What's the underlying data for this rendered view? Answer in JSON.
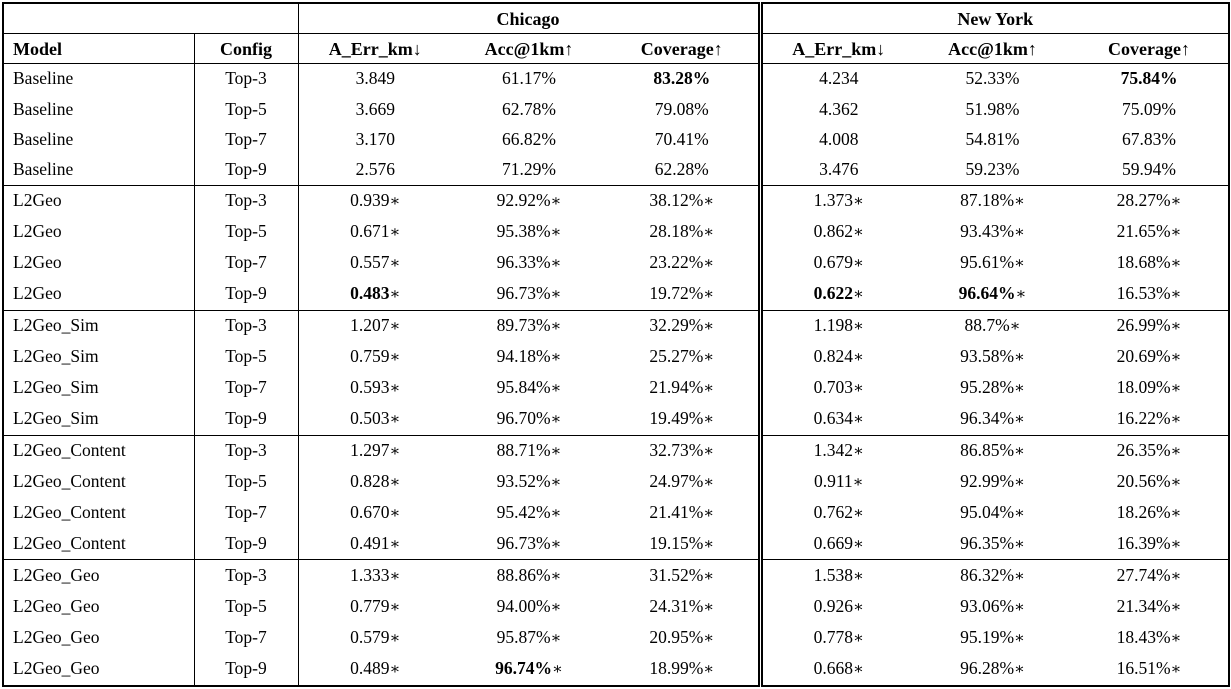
{
  "table": {
    "star_symbol": "∗",
    "city_groups": [
      "Chicago",
      "New York"
    ],
    "column_headers": {
      "model": "Model",
      "config": "Config",
      "metrics": [
        "A_Err_km↓",
        "Acc@1km↑",
        "Coverage↑"
      ]
    },
    "chart_data": {
      "type": "table",
      "note": "Results table; per-row values listed in groups below"
    },
    "groups": [
      {
        "model": "Baseline",
        "rows": [
          {
            "config": "Top-3",
            "starred": false,
            "chicago": [
              "3.849",
              "61.17%",
              "83.28%"
            ],
            "chicago_bold": [
              false,
              false,
              true
            ],
            "new_york": [
              "4.234",
              "52.33%",
              "75.84%"
            ],
            "new_york_bold": [
              false,
              false,
              true
            ]
          },
          {
            "config": "Top-5",
            "starred": false,
            "chicago": [
              "3.669",
              "62.78%",
              "79.08%"
            ],
            "chicago_bold": [
              false,
              false,
              false
            ],
            "new_york": [
              "4.362",
              "51.98%",
              "75.09%"
            ],
            "new_york_bold": [
              false,
              false,
              false
            ]
          },
          {
            "config": "Top-7",
            "starred": false,
            "chicago": [
              "3.170",
              "66.82%",
              "70.41%"
            ],
            "chicago_bold": [
              false,
              false,
              false
            ],
            "new_york": [
              "4.008",
              "54.81%",
              "67.83%"
            ],
            "new_york_bold": [
              false,
              false,
              false
            ]
          },
          {
            "config": "Top-9",
            "starred": false,
            "chicago": [
              "2.576",
              "71.29%",
              "62.28%"
            ],
            "chicago_bold": [
              false,
              false,
              false
            ],
            "new_york": [
              "3.476",
              "59.23%",
              "59.94%"
            ],
            "new_york_bold": [
              false,
              false,
              false
            ]
          }
        ]
      },
      {
        "model": "L2Geo",
        "rows": [
          {
            "config": "Top-3",
            "starred": true,
            "chicago": [
              "0.939",
              "92.92%",
              "38.12%"
            ],
            "chicago_bold": [
              false,
              false,
              false
            ],
            "new_york": [
              "1.373",
              "87.18%",
              "28.27%"
            ],
            "new_york_bold": [
              false,
              false,
              false
            ]
          },
          {
            "config": "Top-5",
            "starred": true,
            "chicago": [
              "0.671",
              "95.38%",
              "28.18%"
            ],
            "chicago_bold": [
              false,
              false,
              false
            ],
            "new_york": [
              "0.862",
              "93.43%",
              "21.65%"
            ],
            "new_york_bold": [
              false,
              false,
              false
            ]
          },
          {
            "config": "Top-7",
            "starred": true,
            "chicago": [
              "0.557",
              "96.33%",
              "23.22%"
            ],
            "chicago_bold": [
              false,
              false,
              false
            ],
            "new_york": [
              "0.679",
              "95.61%",
              "18.68%"
            ],
            "new_york_bold": [
              false,
              false,
              false
            ]
          },
          {
            "config": "Top-9",
            "starred": true,
            "chicago": [
              "0.483",
              "96.73%",
              "19.72%"
            ],
            "chicago_bold": [
              true,
              false,
              false
            ],
            "new_york": [
              "0.622",
              "96.64%",
              "16.53%"
            ],
            "new_york_bold": [
              true,
              true,
              false
            ]
          }
        ]
      },
      {
        "model": "L2Geo_Sim",
        "rows": [
          {
            "config": "Top-3",
            "starred": true,
            "chicago": [
              "1.207",
              "89.73%",
              "32.29%"
            ],
            "chicago_bold": [
              false,
              false,
              false
            ],
            "new_york": [
              "1.198",
              "88.7%",
              "26.99%"
            ],
            "new_york_bold": [
              false,
              false,
              false
            ]
          },
          {
            "config": "Top-5",
            "starred": true,
            "chicago": [
              "0.759",
              "94.18%",
              "25.27%"
            ],
            "chicago_bold": [
              false,
              false,
              false
            ],
            "new_york": [
              "0.824",
              "93.58%",
              "20.69%"
            ],
            "new_york_bold": [
              false,
              false,
              false
            ]
          },
          {
            "config": "Top-7",
            "starred": true,
            "chicago": [
              "0.593",
              "95.84%",
              "21.94%"
            ],
            "chicago_bold": [
              false,
              false,
              false
            ],
            "new_york": [
              "0.703",
              "95.28%",
              "18.09%"
            ],
            "new_york_bold": [
              false,
              false,
              false
            ]
          },
          {
            "config": "Top-9",
            "starred": true,
            "chicago": [
              "0.503",
              "96.70%",
              "19.49%"
            ],
            "chicago_bold": [
              false,
              false,
              false
            ],
            "new_york": [
              "0.634",
              "96.34%",
              "16.22%"
            ],
            "new_york_bold": [
              false,
              false,
              false
            ]
          }
        ]
      },
      {
        "model": "L2Geo_Content",
        "rows": [
          {
            "config": "Top-3",
            "starred": true,
            "chicago": [
              "1.297",
              "88.71%",
              "32.73%"
            ],
            "chicago_bold": [
              false,
              false,
              false
            ],
            "new_york": [
              "1.342",
              "86.85%",
              "26.35%"
            ],
            "new_york_bold": [
              false,
              false,
              false
            ]
          },
          {
            "config": "Top-5",
            "starred": true,
            "chicago": [
              "0.828",
              "93.52%",
              "24.97%"
            ],
            "chicago_bold": [
              false,
              false,
              false
            ],
            "new_york": [
              "0.911",
              "92.99%",
              "20.56%"
            ],
            "new_york_bold": [
              false,
              false,
              false
            ]
          },
          {
            "config": "Top-7",
            "starred": true,
            "chicago": [
              "0.670",
              "95.42%",
              "21.41%"
            ],
            "chicago_bold": [
              false,
              false,
              false
            ],
            "new_york": [
              "0.762",
              "95.04%",
              "18.26%"
            ],
            "new_york_bold": [
              false,
              false,
              false
            ]
          },
          {
            "config": "Top-9",
            "starred": true,
            "chicago": [
              "0.491",
              "96.73%",
              "19.15%"
            ],
            "chicago_bold": [
              false,
              false,
              false
            ],
            "new_york": [
              "0.669",
              "96.35%",
              "16.39%"
            ],
            "new_york_bold": [
              false,
              false,
              false
            ]
          }
        ]
      },
      {
        "model": "L2Geo_Geo",
        "rows": [
          {
            "config": "Top-3",
            "starred": true,
            "chicago": [
              "1.333",
              "88.86%",
              "31.52%"
            ],
            "chicago_bold": [
              false,
              false,
              false
            ],
            "new_york": [
              "1.538",
              "86.32%",
              "27.74%"
            ],
            "new_york_bold": [
              false,
              false,
              false
            ]
          },
          {
            "config": "Top-5",
            "starred": true,
            "chicago": [
              "0.779",
              "94.00%",
              "24.31%"
            ],
            "chicago_bold": [
              false,
              false,
              false
            ],
            "new_york": [
              "0.926",
              "93.06%",
              "21.34%"
            ],
            "new_york_bold": [
              false,
              false,
              false
            ]
          },
          {
            "config": "Top-7",
            "starred": true,
            "chicago": [
              "0.579",
              "95.87%",
              "20.95%"
            ],
            "chicago_bold": [
              false,
              false,
              false
            ],
            "new_york": [
              "0.778",
              "95.19%",
              "18.43%"
            ],
            "new_york_bold": [
              false,
              false,
              false
            ]
          },
          {
            "config": "Top-9",
            "starred": true,
            "chicago": [
              "0.489",
              "96.74%",
              "18.99%"
            ],
            "chicago_bold": [
              false,
              true,
              false
            ],
            "new_york": [
              "0.668",
              "96.28%",
              "16.51%"
            ],
            "new_york_bold": [
              false,
              false,
              false
            ]
          }
        ]
      }
    ]
  }
}
